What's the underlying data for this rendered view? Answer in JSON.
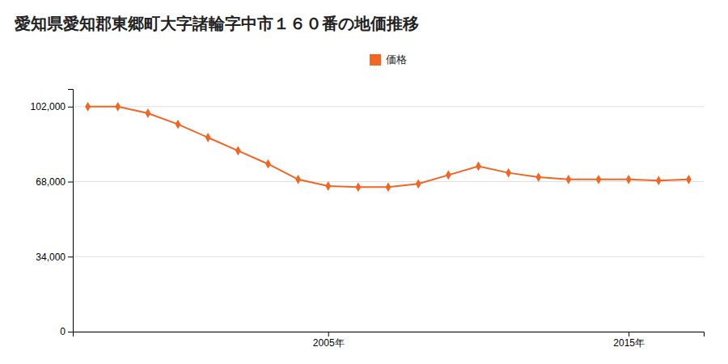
{
  "chart_data": {
    "type": "line",
    "title": "愛知県愛知郡東郷町大字諸輪字中市１６０番の地価推移",
    "x": [
      1997,
      1998,
      1999,
      2000,
      2001,
      2002,
      2003,
      2004,
      2005,
      2006,
      2007,
      2008,
      2009,
      2010,
      2011,
      2012,
      2013,
      2014,
      2015,
      2016,
      2017
    ],
    "series": [
      {
        "name": "価格",
        "color": "#f26522",
        "marker": "diamond",
        "values": [
          102000,
          102000,
          99000,
          94000,
          88000,
          82000,
          76000,
          69000,
          66000,
          65500,
          65500,
          67000,
          71000,
          75000,
          72000,
          70000,
          69000,
          69000,
          69000,
          68500,
          69000
        ]
      }
    ],
    "xlim": [
      1996.5,
      2017.5
    ],
    "xticks": [
      {
        "value": 2005,
        "label": "2005年"
      },
      {
        "value": 2015,
        "label": "2015年"
      }
    ],
    "ylim": [
      0,
      110000
    ],
    "yticks": [
      0,
      {
        "value": 34000,
        "label": "34,000"
      },
      {
        "value": 68000,
        "label": "68,000"
      },
      {
        "value": 102000,
        "label": "102,000"
      }
    ],
    "grid": true,
    "legend": "top"
  }
}
